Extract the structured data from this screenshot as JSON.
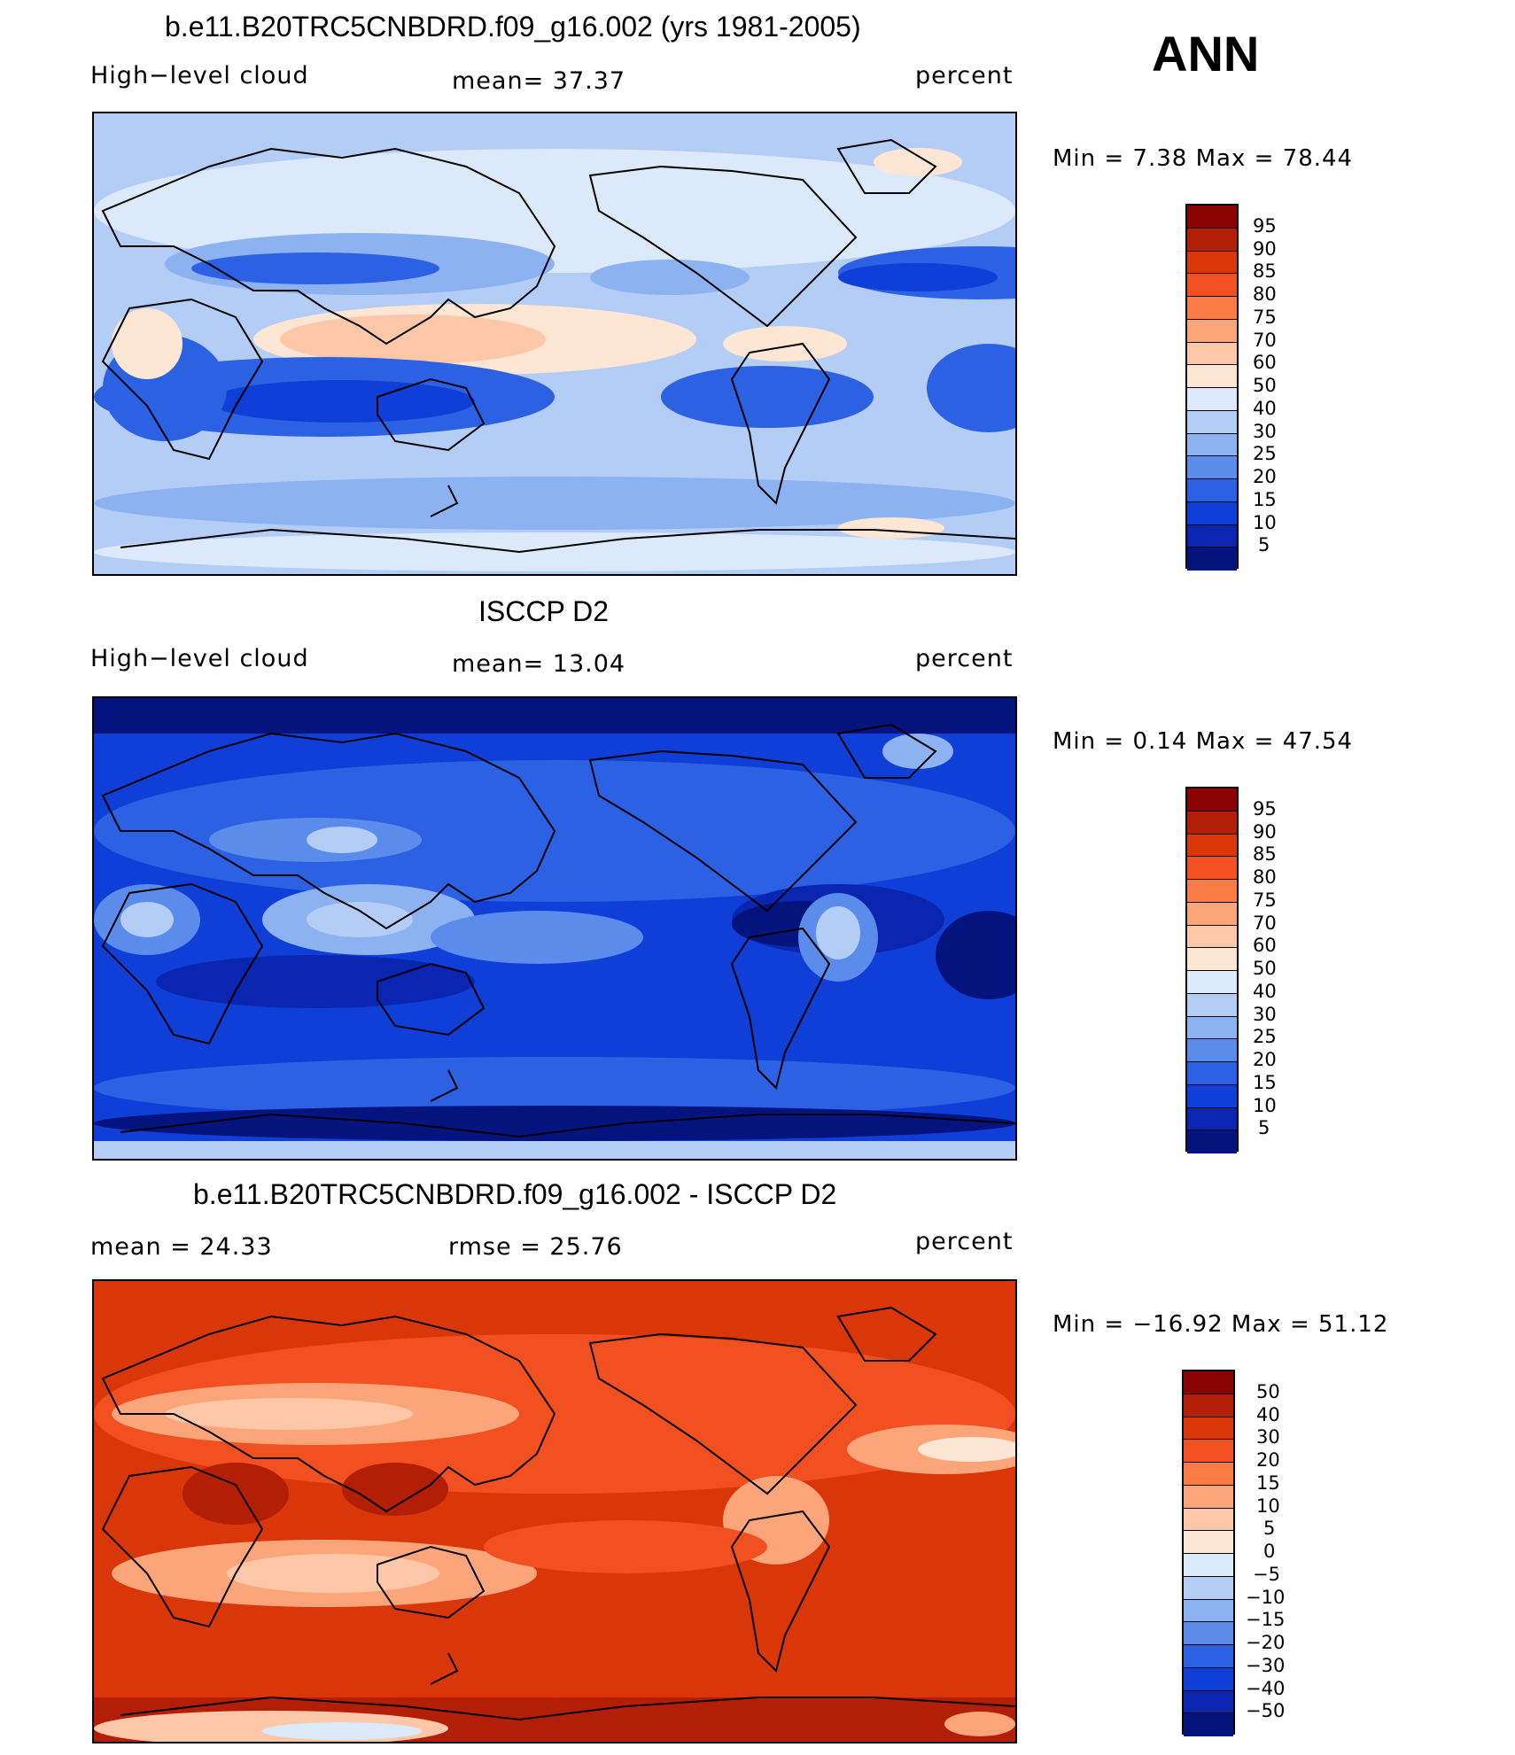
{
  "header": {
    "ann": "ANN"
  },
  "panels": [
    {
      "title": "b.e11.B20TRC5CNBDRD.f09_g16.002 (yrs 1981-2005)",
      "left": "High−level cloud",
      "mid": "mean=  37.37",
      "right": "percent",
      "minmax": "Min =    7.38 Max =   78.44",
      "levels": [
        "95",
        "90",
        "85",
        "80",
        "75",
        "70",
        "60",
        "50",
        "40",
        "30",
        "25",
        "20",
        "15",
        "10",
        "5"
      ],
      "colors": [
        "#8b0000",
        "#b31e07",
        "#d93609",
        "#f25020",
        "#fb7a46",
        "#fca47a",
        "#fdc7a8",
        "#fde6d3",
        "#dbe9fa",
        "#b4cdf6",
        "#8db2f1",
        "#5b8ceb",
        "#2d61e3",
        "#0f3fd6",
        "#0a25b0",
        "#05137f"
      ]
    },
    {
      "title": "ISCCP D2",
      "left": "High−level cloud",
      "mid": "mean=  13.04",
      "right": "percent",
      "minmax": "Min =    0.14 Max =   47.54",
      "levels": [
        "95",
        "90",
        "85",
        "80",
        "75",
        "70",
        "60",
        "50",
        "40",
        "30",
        "25",
        "20",
        "15",
        "10",
        "5"
      ],
      "colors": [
        "#8b0000",
        "#b31e07",
        "#d93609",
        "#f25020",
        "#fb7a46",
        "#fca47a",
        "#fdc7a8",
        "#fde6d3",
        "#dbe9fa",
        "#b4cdf6",
        "#8db2f1",
        "#5b8ceb",
        "#2d61e3",
        "#0f3fd6",
        "#0a25b0",
        "#05137f"
      ]
    },
    {
      "title": "b.e11.B20TRC5CNBDRD.f09_g16.002 - ISCCP D2",
      "left": "mean =   24.33",
      "mid": "rmse =   25.76",
      "right": "percent",
      "minmax": "Min = −16.92 Max =   51.12",
      "levels": [
        "50",
        "40",
        "30",
        "20",
        "15",
        "10",
        "5",
        "0",
        "−5",
        "−10",
        "−15",
        "−20",
        "−30",
        "−40",
        "−50"
      ],
      "colors": [
        "#8b0000",
        "#b31e07",
        "#d93609",
        "#f25020",
        "#fb7a46",
        "#fca47a",
        "#fdc7a8",
        "#fde6d3",
        "#dbe9fa",
        "#b4cdf6",
        "#8db2f1",
        "#5b8ceb",
        "#2d61e3",
        "#0f3fd6",
        "#0a25b0",
        "#05137f"
      ]
    }
  ],
  "colors": {
    "model_field": "#b4cdf6",
    "obs_field": "#0f3fd6",
    "diff_field": "#f25020",
    "coastline": "#000000"
  }
}
